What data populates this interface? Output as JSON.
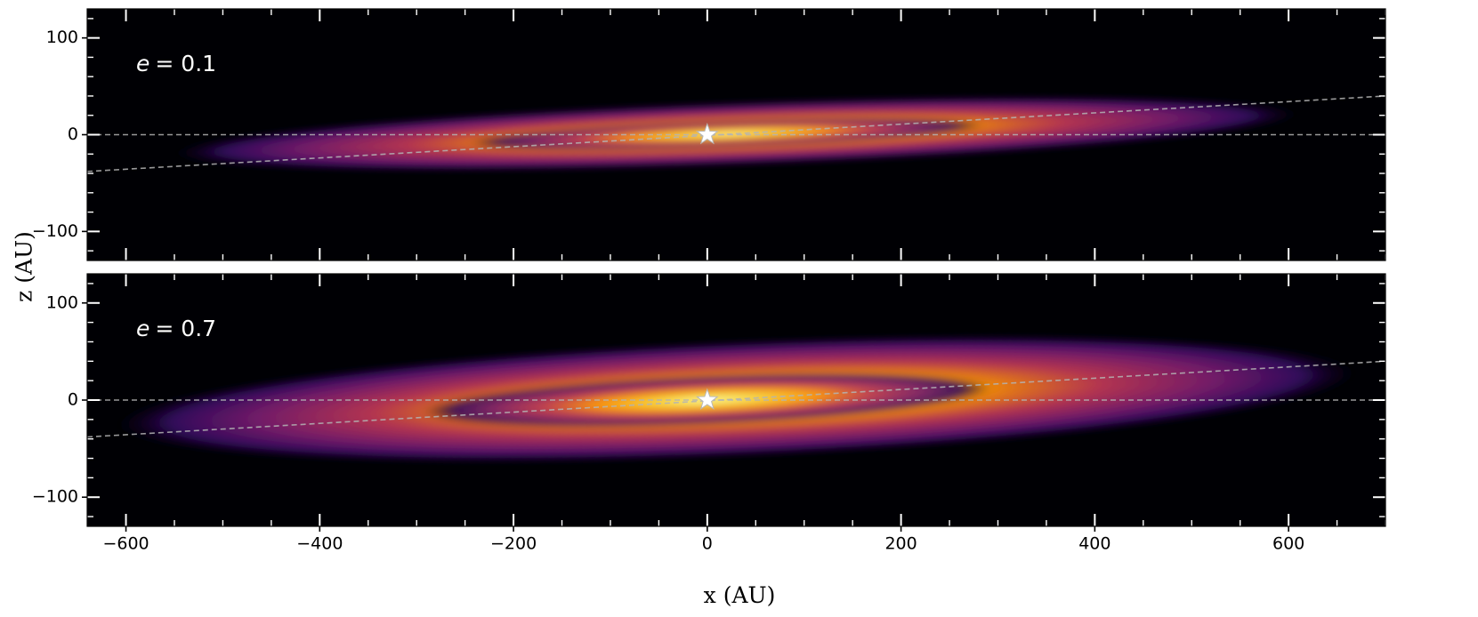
{
  "chart_data": {
    "type": "heatmap",
    "xlabel": "x (AU)",
    "ylabel": "z (AU)",
    "xlim": [
      -640,
      700
    ],
    "ylim": [
      -130,
      130
    ],
    "x_ticks": [
      -600,
      -400,
      -200,
      0,
      200,
      400,
      600
    ],
    "x_tick_labels": [
      "−600",
      "−400",
      "−200",
      "0",
      "200",
      "400",
      "600"
    ],
    "y_ticks": [
      -100,
      0,
      100
    ],
    "y_tick_labels": [
      "−100",
      "0",
      "100"
    ],
    "colormap": "inferno",
    "background_color": "#000004",
    "reference_line_color": "#b4b4b4",
    "panels": [
      {
        "label_var": "e",
        "label_value": "= 0.1",
        "star_position": [
          0,
          0
        ],
        "disk": {
          "x_extent": [
            -560,
            620
          ],
          "half_thickness": 26,
          "tilt_deg": 2.0,
          "peak_x": 20
        },
        "reference_lines": [
          {
            "style": "dashed",
            "x": [
              -640,
              700
            ],
            "z": [
              0,
              0
            ]
          },
          {
            "style": "dashed",
            "x": [
              -640,
              700
            ],
            "z": [
              -38,
              40
            ]
          }
        ]
      },
      {
        "label_var": "e",
        "label_value": "= 0.7",
        "star_position": [
          0,
          0
        ],
        "disk": {
          "x_extent": [
            -620,
            680
          ],
          "half_thickness": 48,
          "tilt_deg": 2.4,
          "peak_x": 0
        },
        "reference_lines": [
          {
            "style": "dashed",
            "x": [
              -640,
              700
            ],
            "z": [
              0,
              0
            ]
          },
          {
            "style": "dashed",
            "x": [
              -640,
              700
            ],
            "z": [
              -38,
              40
            ]
          }
        ]
      }
    ]
  }
}
